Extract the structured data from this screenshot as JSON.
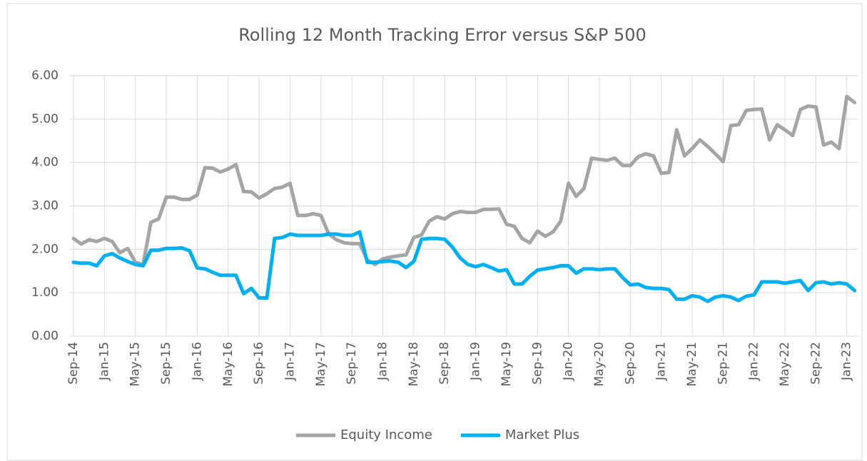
{
  "chart_data": {
    "type": "line",
    "title": "Rolling 12 Month Tracking Error versus S&P 500",
    "categories": [
      "Sep-14",
      null,
      null,
      null,
      "Jan-15",
      null,
      null,
      null,
      "May-15",
      null,
      null,
      null,
      "Sep-15",
      null,
      null,
      null,
      "Jan-16",
      null,
      null,
      null,
      "May-16",
      null,
      null,
      null,
      "Sep-16",
      null,
      null,
      null,
      "Jan-17",
      null,
      null,
      null,
      "May-17",
      null,
      null,
      null,
      "Sep-17",
      null,
      null,
      null,
      "Jan-18",
      null,
      null,
      null,
      "May-18",
      null,
      null,
      null,
      "Sep-18",
      null,
      null,
      null,
      "Jan-19",
      null,
      null,
      null,
      "May-19",
      null,
      null,
      null,
      "Sep-19",
      null,
      null,
      null,
      "Jan-20",
      null,
      null,
      null,
      "May-20",
      null,
      null,
      null,
      "Sep-20",
      null,
      null,
      null,
      "Jan-21",
      null,
      null,
      null,
      "May-21",
      null,
      null,
      null,
      "Sep-21",
      null,
      null,
      null,
      "Jan-22",
      null,
      null,
      null,
      "May-22",
      null,
      null,
      null,
      "Sep-22",
      null,
      null,
      null,
      "Jan-23",
      null
    ],
    "series": [
      {
        "name": "Equity Income",
        "color": "#a5a5a5",
        "values": [
          2.25,
          2.12,
          2.22,
          2.18,
          2.25,
          2.18,
          1.92,
          2.02,
          1.7,
          1.65,
          2.62,
          2.7,
          3.2,
          3.2,
          3.15,
          3.15,
          3.25,
          3.88,
          3.87,
          3.78,
          3.85,
          3.95,
          3.33,
          3.32,
          3.18,
          3.28,
          3.4,
          3.43,
          3.52,
          2.78,
          2.78,
          2.82,
          2.78,
          2.35,
          2.22,
          2.15,
          2.13,
          2.13,
          1.75,
          1.65,
          1.78,
          1.82,
          1.85,
          1.87,
          2.27,
          2.33,
          2.65,
          2.75,
          2.7,
          2.82,
          2.87,
          2.85,
          2.85,
          2.92,
          2.92,
          2.93,
          2.58,
          2.53,
          2.25,
          2.15,
          2.42,
          2.3,
          2.4,
          2.65,
          3.52,
          3.22,
          3.4,
          4.1,
          4.07,
          4.05,
          4.1,
          3.93,
          3.93,
          4.13,
          4.2,
          4.15,
          3.75,
          3.77,
          4.75,
          4.15,
          4.32,
          4.52,
          4.37,
          4.2,
          4.02,
          4.85,
          4.87,
          5.2,
          5.22,
          5.23,
          4.52,
          4.87,
          4.75,
          4.62,
          5.22,
          5.3,
          5.28,
          4.4,
          4.47,
          4.32,
          5.52,
          5.38
        ]
      },
      {
        "name": "Market Plus",
        "color": "#00b0f0",
        "values": [
          1.7,
          1.68,
          1.68,
          1.62,
          1.85,
          1.9,
          1.8,
          1.72,
          1.65,
          1.62,
          1.98,
          1.98,
          2.02,
          2.02,
          2.03,
          1.97,
          1.57,
          1.55,
          1.47,
          1.4,
          1.4,
          1.4,
          0.98,
          1.1,
          0.88,
          0.88,
          2.25,
          2.27,
          2.35,
          2.32,
          2.32,
          2.32,
          2.32,
          2.35,
          2.35,
          2.32,
          2.32,
          2.4,
          1.7,
          1.7,
          1.72,
          1.73,
          1.7,
          1.58,
          1.72,
          2.23,
          2.25,
          2.25,
          2.23,
          2.05,
          1.8,
          1.65,
          1.6,
          1.65,
          1.58,
          1.5,
          1.53,
          1.2,
          1.2,
          1.38,
          1.52,
          1.55,
          1.58,
          1.62,
          1.62,
          1.45,
          1.55,
          1.55,
          1.53,
          1.55,
          1.55,
          1.35,
          1.18,
          1.2,
          1.12,
          1.1,
          1.1,
          1.07,
          0.85,
          0.85,
          0.93,
          0.9,
          0.8,
          0.9,
          0.93,
          0.9,
          0.82,
          0.92,
          0.95,
          1.25,
          1.25,
          1.25,
          1.22,
          1.25,
          1.28,
          1.05,
          1.23,
          1.25,
          1.2,
          1.23,
          1.2,
          1.05
        ]
      }
    ],
    "ylim": [
      0,
      6
    ],
    "yticks": [
      {
        "value": 0,
        "label": "0.00"
      },
      {
        "value": 1,
        "label": "1.00"
      },
      {
        "value": 2,
        "label": "2.00"
      },
      {
        "value": 3,
        "label": "3.00"
      },
      {
        "value": 4,
        "label": "4.00"
      },
      {
        "value": 5,
        "label": "5.00"
      },
      {
        "value": 6,
        "label": "6.00"
      }
    ],
    "grid": true,
    "legend": "bottom"
  }
}
